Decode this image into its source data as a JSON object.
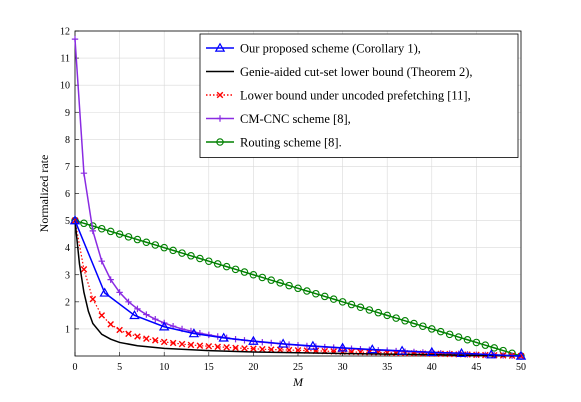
{
  "chart_data": {
    "type": "line",
    "xlabel": "M",
    "ylabel": "Normalized rate",
    "xlim": [
      0,
      50
    ],
    "ylim": [
      0,
      12
    ],
    "xticks": [
      0,
      5,
      10,
      15,
      20,
      25,
      30,
      35,
      40,
      45,
      50
    ],
    "yticks": [
      1,
      2,
      3,
      4,
      5,
      6,
      7,
      8,
      9,
      10,
      11,
      12
    ],
    "grid": true,
    "legend_position": "top-right",
    "series": [
      {
        "name": "Our proposed scheme (Corollary 1),",
        "color": "#0000ff",
        "line": "solid",
        "marker": "triangle",
        "x": [
          0,
          3.33,
          6.67,
          10,
          13.33,
          16.67,
          20,
          23.33,
          26.67,
          30,
          33.33,
          36.67,
          40,
          43.33,
          46.67,
          50
        ],
        "y": [
          5.0,
          2.33,
          1.5,
          1.08,
          0.83,
          0.67,
          0.55,
          0.45,
          0.37,
          0.3,
          0.24,
          0.19,
          0.14,
          0.1,
          0.05,
          0.0
        ]
      },
      {
        "name": "Genie-aided cut-set lower bound (Theorem 2),",
        "color": "#000000",
        "line": "solid",
        "marker": "none",
        "x": [
          0,
          0.5,
          1,
          1.5,
          2,
          3,
          4,
          5,
          7,
          10,
          15,
          20,
          25,
          30,
          35,
          40,
          45,
          50
        ],
        "y": [
          5.0,
          3.4,
          2.35,
          1.65,
          1.2,
          0.8,
          0.62,
          0.5,
          0.38,
          0.28,
          0.2,
          0.15,
          0.12,
          0.09,
          0.07,
          0.05,
          0.02,
          0.0
        ]
      },
      {
        "name": "Lower bound under uncoded prefetching [11],",
        "color": "#ff0000",
        "line": "dotted",
        "marker": "x",
        "x": [
          0,
          1,
          2,
          3,
          4,
          5,
          6,
          7,
          8,
          9,
          10,
          11,
          12,
          13,
          14,
          15,
          16,
          17,
          18,
          19,
          20,
          21,
          22,
          23,
          24,
          25,
          26,
          27,
          28,
          29,
          30,
          31,
          32,
          33,
          34,
          35,
          36,
          37,
          38,
          39,
          40,
          41,
          42,
          43,
          44,
          45,
          46,
          47,
          48,
          49,
          50
        ],
        "y": [
          5.0,
          3.2,
          2.1,
          1.5,
          1.17,
          0.96,
          0.82,
          0.72,
          0.64,
          0.58,
          0.52,
          0.48,
          0.44,
          0.41,
          0.38,
          0.36,
          0.34,
          0.32,
          0.3,
          0.28,
          0.27,
          0.25,
          0.24,
          0.23,
          0.22,
          0.21,
          0.2,
          0.19,
          0.18,
          0.17,
          0.16,
          0.15,
          0.14,
          0.135,
          0.13,
          0.12,
          0.11,
          0.105,
          0.1,
          0.09,
          0.085,
          0.08,
          0.07,
          0.06,
          0.055,
          0.045,
          0.035,
          0.028,
          0.02,
          0.01,
          0.0
        ]
      },
      {
        "name": "CM-CNC scheme [8],",
        "color": "#8a2be2",
        "line": "solid",
        "marker": "plus",
        "x": [
          0,
          1,
          2,
          3,
          4,
          5,
          6,
          7,
          8,
          9,
          10,
          11,
          12,
          13,
          14,
          15,
          16,
          17,
          18,
          19,
          20,
          21,
          22,
          23,
          24,
          25,
          26,
          27,
          28,
          29,
          30,
          31,
          32,
          33,
          34,
          35,
          36,
          37,
          38,
          39,
          40,
          41,
          42,
          43,
          44,
          45,
          46,
          47,
          48,
          49,
          50
        ],
        "y": [
          11.7,
          6.75,
          4.62,
          3.5,
          2.82,
          2.35,
          2.0,
          1.74,
          1.53,
          1.36,
          1.22,
          1.1,
          1.0,
          0.92,
          0.84,
          0.78,
          0.72,
          0.67,
          0.62,
          0.58,
          0.54,
          0.51,
          0.48,
          0.45,
          0.42,
          0.4,
          0.37,
          0.35,
          0.33,
          0.31,
          0.29,
          0.27,
          0.25,
          0.23,
          0.21,
          0.2,
          0.18,
          0.16,
          0.15,
          0.13,
          0.12,
          0.1,
          0.09,
          0.08,
          0.06,
          0.05,
          0.04,
          0.03,
          0.02,
          0.01,
          0.0
        ]
      },
      {
        "name": "Routing scheme [8].",
        "color": "#008000",
        "line": "solid",
        "marker": "circle",
        "x": [
          0,
          1,
          2,
          3,
          4,
          5,
          6,
          7,
          8,
          9,
          10,
          11,
          12,
          13,
          14,
          15,
          16,
          17,
          18,
          19,
          20,
          21,
          22,
          23,
          24,
          25,
          26,
          27,
          28,
          29,
          30,
          31,
          32,
          33,
          34,
          35,
          36,
          37,
          38,
          39,
          40,
          41,
          42,
          43,
          44,
          45,
          46,
          47,
          48,
          49,
          50
        ],
        "y": [
          5.0,
          4.9,
          4.8,
          4.7,
          4.6,
          4.5,
          4.4,
          4.3,
          4.2,
          4.1,
          4.0,
          3.9,
          3.8,
          3.7,
          3.6,
          3.5,
          3.4,
          3.3,
          3.2,
          3.1,
          3.0,
          2.9,
          2.8,
          2.7,
          2.6,
          2.5,
          2.4,
          2.3,
          2.2,
          2.1,
          2.0,
          1.9,
          1.8,
          1.7,
          1.6,
          1.5,
          1.4,
          1.3,
          1.2,
          1.1,
          1.0,
          0.9,
          0.8,
          0.7,
          0.6,
          0.5,
          0.4,
          0.3,
          0.2,
          0.1,
          0.0
        ]
      }
    ]
  }
}
